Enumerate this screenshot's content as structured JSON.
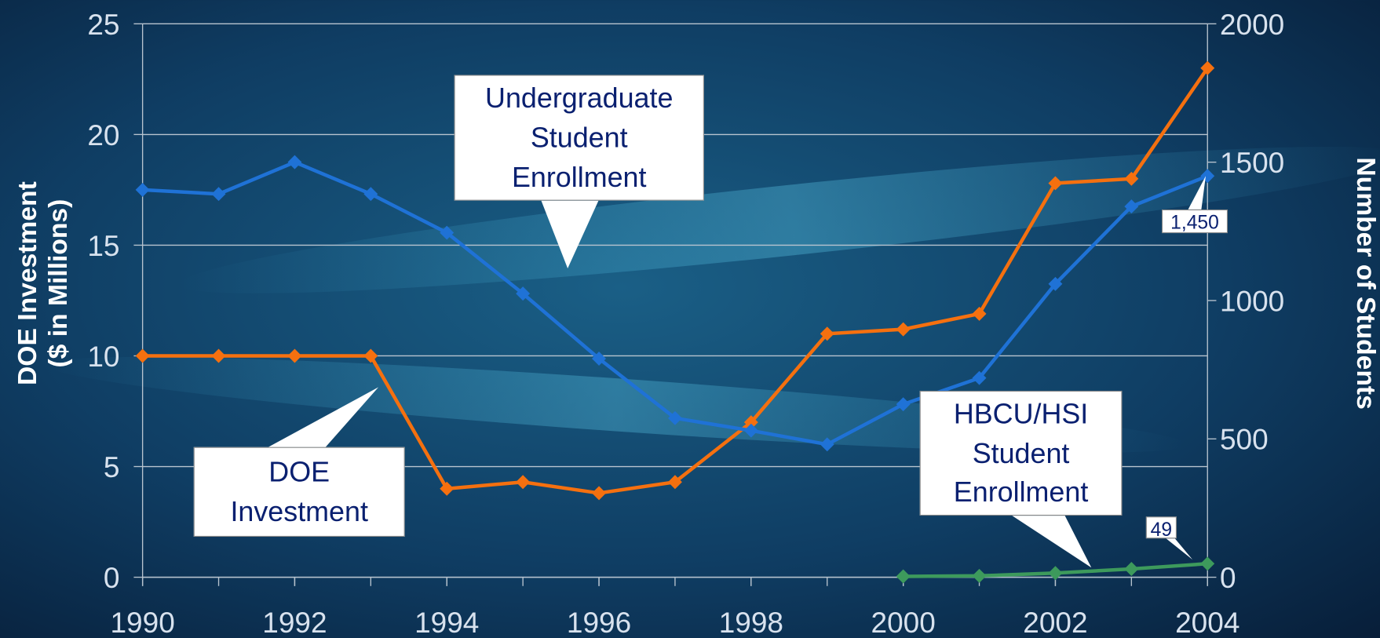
{
  "chart_data": {
    "type": "line",
    "x": [
      1990,
      1991,
      1992,
      1993,
      1994,
      1995,
      1996,
      1997,
      1998,
      1999,
      2000,
      2001,
      2002,
      2003,
      2004
    ],
    "xlim": [
      1990,
      2004
    ],
    "xticks": [
      1990,
      1992,
      1994,
      1996,
      1998,
      2000,
      2002,
      2004
    ],
    "y_label": "DOE Investment\n($ in Millions)",
    "y2_label": "Number of Students",
    "ylim": [
      0,
      25
    ],
    "yticks": [
      0,
      5,
      10,
      15,
      20,
      25
    ],
    "y2lim": [
      0,
      2000
    ],
    "y2ticks": [
      0,
      500,
      1000,
      1500,
      2000
    ],
    "grid": true,
    "series": [
      {
        "name": "DOE\nInvestment",
        "color": "#f5700f",
        "values": [
          10,
          10,
          10,
          10,
          4,
          4.3,
          3.8,
          4.3,
          7,
          11,
          11.2,
          11.9,
          17.8,
          18,
          23
        ]
      },
      {
        "name": "Undergraduate\nStudent\nEnrollment",
        "color": "#1f72d6",
        "axis": "y2",
        "values": [
          1400,
          1385,
          1500,
          1385,
          1245,
          1025,
          790,
          575,
          530,
          480,
          625,
          720,
          1060,
          1340,
          1450
        ],
        "value_labels": [
          null,
          null,
          null,
          null,
          null,
          null,
          null,
          null,
          null,
          null,
          null,
          null,
          null,
          null,
          "1,450"
        ]
      },
      {
        "name": "HBCU/HSI\nStudent\nEnrollment",
        "color": "#3d9a5c",
        "axis": "y2",
        "values": [
          null,
          null,
          null,
          null,
          null,
          null,
          null,
          null,
          null,
          null,
          3,
          5,
          15,
          30,
          49
        ],
        "value_labels": [
          null,
          null,
          null,
          null,
          null,
          null,
          null,
          null,
          null,
          null,
          null,
          null,
          null,
          null,
          "49"
        ]
      }
    ]
  }
}
